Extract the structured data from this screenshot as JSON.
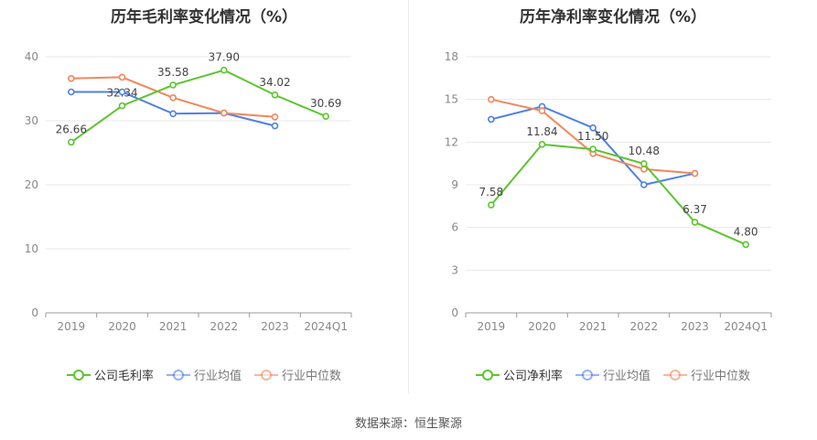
{
  "chart_data": [
    {
      "type": "line",
      "title": "历年毛利率变化情况（%）",
      "categories": [
        "2019",
        "2020",
        "2021",
        "2022",
        "2023",
        "2024Q1"
      ],
      "ylim": [
        0,
        40
      ],
      "yticks": [
        0,
        10,
        20,
        30,
        40
      ],
      "grid": true,
      "legend_position": "bottom",
      "series": [
        {
          "name": "公司毛利率",
          "color": "#5cc52f",
          "labeled": true,
          "values": [
            26.66,
            32.34,
            35.58,
            37.9,
            34.02,
            30.69
          ],
          "labels": [
            "26.66",
            "32.34",
            "35.58",
            "37.90",
            "34.02",
            "30.69"
          ]
        },
        {
          "name": "行业均值",
          "color": "#4e7fe8",
          "labeled": false,
          "values": [
            34.5,
            34.5,
            31.1,
            31.2,
            29.2,
            null
          ]
        },
        {
          "name": "行业中位数",
          "color": "#f2875a",
          "labeled": false,
          "values": [
            36.6,
            36.8,
            33.6,
            31.2,
            30.6,
            null
          ]
        }
      ]
    },
    {
      "type": "line",
      "title": "历年净利率变化情况（%）",
      "categories": [
        "2019",
        "2020",
        "2021",
        "2022",
        "2023",
        "2024Q1"
      ],
      "ylim": [
        0,
        18
      ],
      "yticks": [
        0,
        3,
        6,
        9,
        12,
        15,
        18
      ],
      "grid": true,
      "legend_position": "bottom",
      "series": [
        {
          "name": "公司净利率",
          "color": "#5cc52f",
          "labeled": true,
          "values": [
            7.58,
            11.84,
            11.5,
            10.48,
            6.37,
            4.8
          ],
          "labels": [
            "7.58",
            "11.84",
            "11.50",
            "10.48",
            "6.37",
            "4.80"
          ]
        },
        {
          "name": "行业均值",
          "color": "#4e7fe8",
          "labeled": false,
          "values": [
            13.6,
            14.5,
            13.0,
            9.0,
            9.8,
            null
          ]
        },
        {
          "name": "行业中位数",
          "color": "#f2875a",
          "labeled": false,
          "values": [
            15.0,
            14.2,
            11.2,
            10.1,
            9.8,
            null
          ]
        }
      ]
    }
  ],
  "footer": "数据来源：恒生聚源"
}
